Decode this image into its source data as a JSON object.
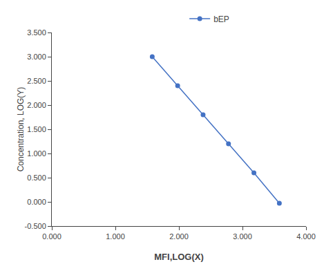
{
  "chart_data": {
    "type": "line",
    "x": [
      1.58,
      1.98,
      2.38,
      2.78,
      3.18,
      3.58
    ],
    "series": [
      {
        "name": "bEP",
        "color": "#4472C4",
        "marker": "circle",
        "line_style": "solid",
        "values": [
          3.0,
          2.4,
          1.8,
          1.2,
          0.6,
          -0.03
        ]
      }
    ],
    "x_label": "MFI,LOG(X)",
    "y_label": "Concentration, LOG(Y)",
    "xlim": [
      0.0,
      4.0
    ],
    "ylim": [
      -0.5,
      3.5
    ],
    "xticks": [
      {
        "value": 0,
        "label": "0.000"
      },
      {
        "value": 1,
        "label": "1.000"
      },
      {
        "value": 2,
        "label": "2.000"
      },
      {
        "value": 3,
        "label": "3.000"
      },
      {
        "value": 4,
        "label": "4.000"
      }
    ],
    "yticks": [
      {
        "value": -0.5,
        "label": "-0.500"
      },
      {
        "value": 0,
        "label": "0.000"
      },
      {
        "value": 0.5,
        "label": "0.500"
      },
      {
        "value": 1,
        "label": "1.000"
      },
      {
        "value": 1.5,
        "label": "1.500"
      },
      {
        "value": 2,
        "label": "2.000"
      },
      {
        "value": 2.5,
        "label": "2.500"
      },
      {
        "value": 3,
        "label": "3.000"
      },
      {
        "value": 3.5,
        "label": "3.500"
      }
    ],
    "grid": false,
    "legend": "top"
  }
}
